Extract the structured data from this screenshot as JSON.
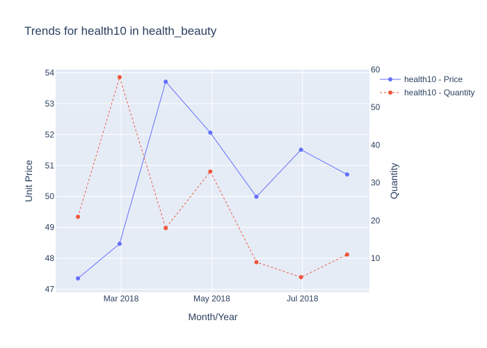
{
  "chart_data": {
    "type": "line",
    "title": "Trends for health10 in health_beauty",
    "xlabel": "Month/Year",
    "ylabel": "Unit Price",
    "y2label": "Quantity",
    "x": [
      "2018-01-31",
      "2018-02-28",
      "2018-03-31",
      "2018-04-30",
      "2018-05-31",
      "2018-06-30",
      "2018-07-31"
    ],
    "x_tick_labels": [
      {
        "date": "2018-03-01",
        "label": "Mar 2018"
      },
      {
        "date": "2018-05-01",
        "label": "May 2018"
      },
      {
        "date": "2018-07-01",
        "label": "Jul 2018"
      }
    ],
    "ylim": [
      46.9,
      54.1
    ],
    "y_ticks": [
      47,
      48,
      49,
      50,
      51,
      52,
      53,
      54
    ],
    "y2lim": [
      1,
      60
    ],
    "y2_ticks": [
      10,
      20,
      30,
      40,
      50,
      60
    ],
    "grid": true,
    "legend_position": "top-right",
    "series": [
      {
        "name": "health10 - Price",
        "axis": "left",
        "color": "#636efa",
        "dash": "solid",
        "values": [
          47.35,
          48.47,
          53.71,
          52.06,
          49.99,
          51.51,
          50.71
        ]
      },
      {
        "name": "health10 - Quantity",
        "axis": "right",
        "color": "#ef553b",
        "dash": "dashed",
        "values": [
          21,
          58,
          18,
          33,
          9,
          5,
          11
        ]
      }
    ]
  }
}
